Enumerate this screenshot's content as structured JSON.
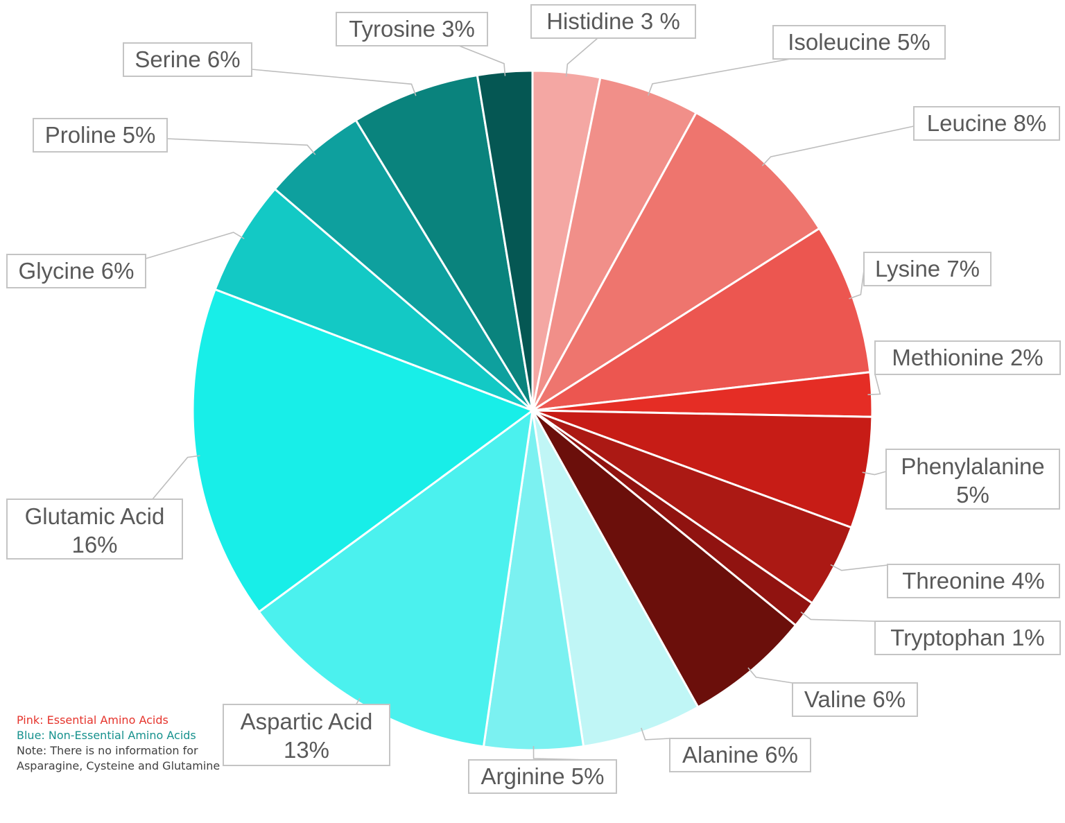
{
  "chart_data": {
    "type": "pie",
    "title": "",
    "slices": [
      {
        "name": "Histidine",
        "label": "Histidine 3 %",
        "value": 3.2,
        "color": "#f4a7a3"
      },
      {
        "name": "Isoleucine",
        "label": "Isoleucine 5%",
        "value": 4.8,
        "color": "#f18f89"
      },
      {
        "name": "Leucine",
        "label": "Leucine 8%",
        "value": 8.0,
        "color": "#ee756e"
      },
      {
        "name": "Lysine",
        "label": "Lysine 7%",
        "value": 7.2,
        "color": "#ec5650"
      },
      {
        "name": "Methionine",
        "label": "Methionine 2%",
        "value": 2.1,
        "color": "#e52d25"
      },
      {
        "name": "Phenylalanine",
        "label": "Phenylalanine 5%",
        "value": 5.3,
        "color": "#c71c16"
      },
      {
        "name": "Threonine",
        "label": "Threonine 4%",
        "value": 4.0,
        "color": "#ab1914"
      },
      {
        "name": "Tryptophan",
        "label": "Tryptophan 1%",
        "value": 1.3,
        "color": "#901310"
      },
      {
        "name": "Valine",
        "label": "Valine 6%",
        "value": 6.0,
        "color": "#6b0f0b"
      },
      {
        "name": "Alanine",
        "label": "Alanine 6%",
        "value": 5.7,
        "color": "#c0f6f6"
      },
      {
        "name": "Arginine",
        "label": "Arginine 5%",
        "value": 4.7,
        "color": "#7bf1f1"
      },
      {
        "name": "Aspartic Acid",
        "label": "Aspartic Acid 13%",
        "value": 12.6,
        "color": "#4bf1ee"
      },
      {
        "name": "Glutamic Acid",
        "label": "Glutamic Acid 16%",
        "value": 15.9,
        "color": "#18eee8"
      },
      {
        "name": "Glycine",
        "label": "Glycine 6%",
        "value": 5.5,
        "color": "#13c9c5"
      },
      {
        "name": "Proline",
        "label": "Proline 5%",
        "value": 5.0,
        "color": "#0ea09e"
      },
      {
        "name": "Serine",
        "label": "Serine 6%",
        "value": 6.1,
        "color": "#0a837d"
      },
      {
        "name": "Tyrosine",
        "label": "Tyrosine 3%",
        "value": 2.6,
        "color": "#055753"
      }
    ]
  },
  "legend_note": {
    "essential": "Pink: Essential Amino Acids",
    "non_essential": "Blue: Non-Essential Amino Acids",
    "note": "Note: There is no information for Asparagine, Cysteine and Glutamine",
    "essential_color": "#e5332b",
    "non_essential_color": "#16918d",
    "note_color": "#404040"
  }
}
